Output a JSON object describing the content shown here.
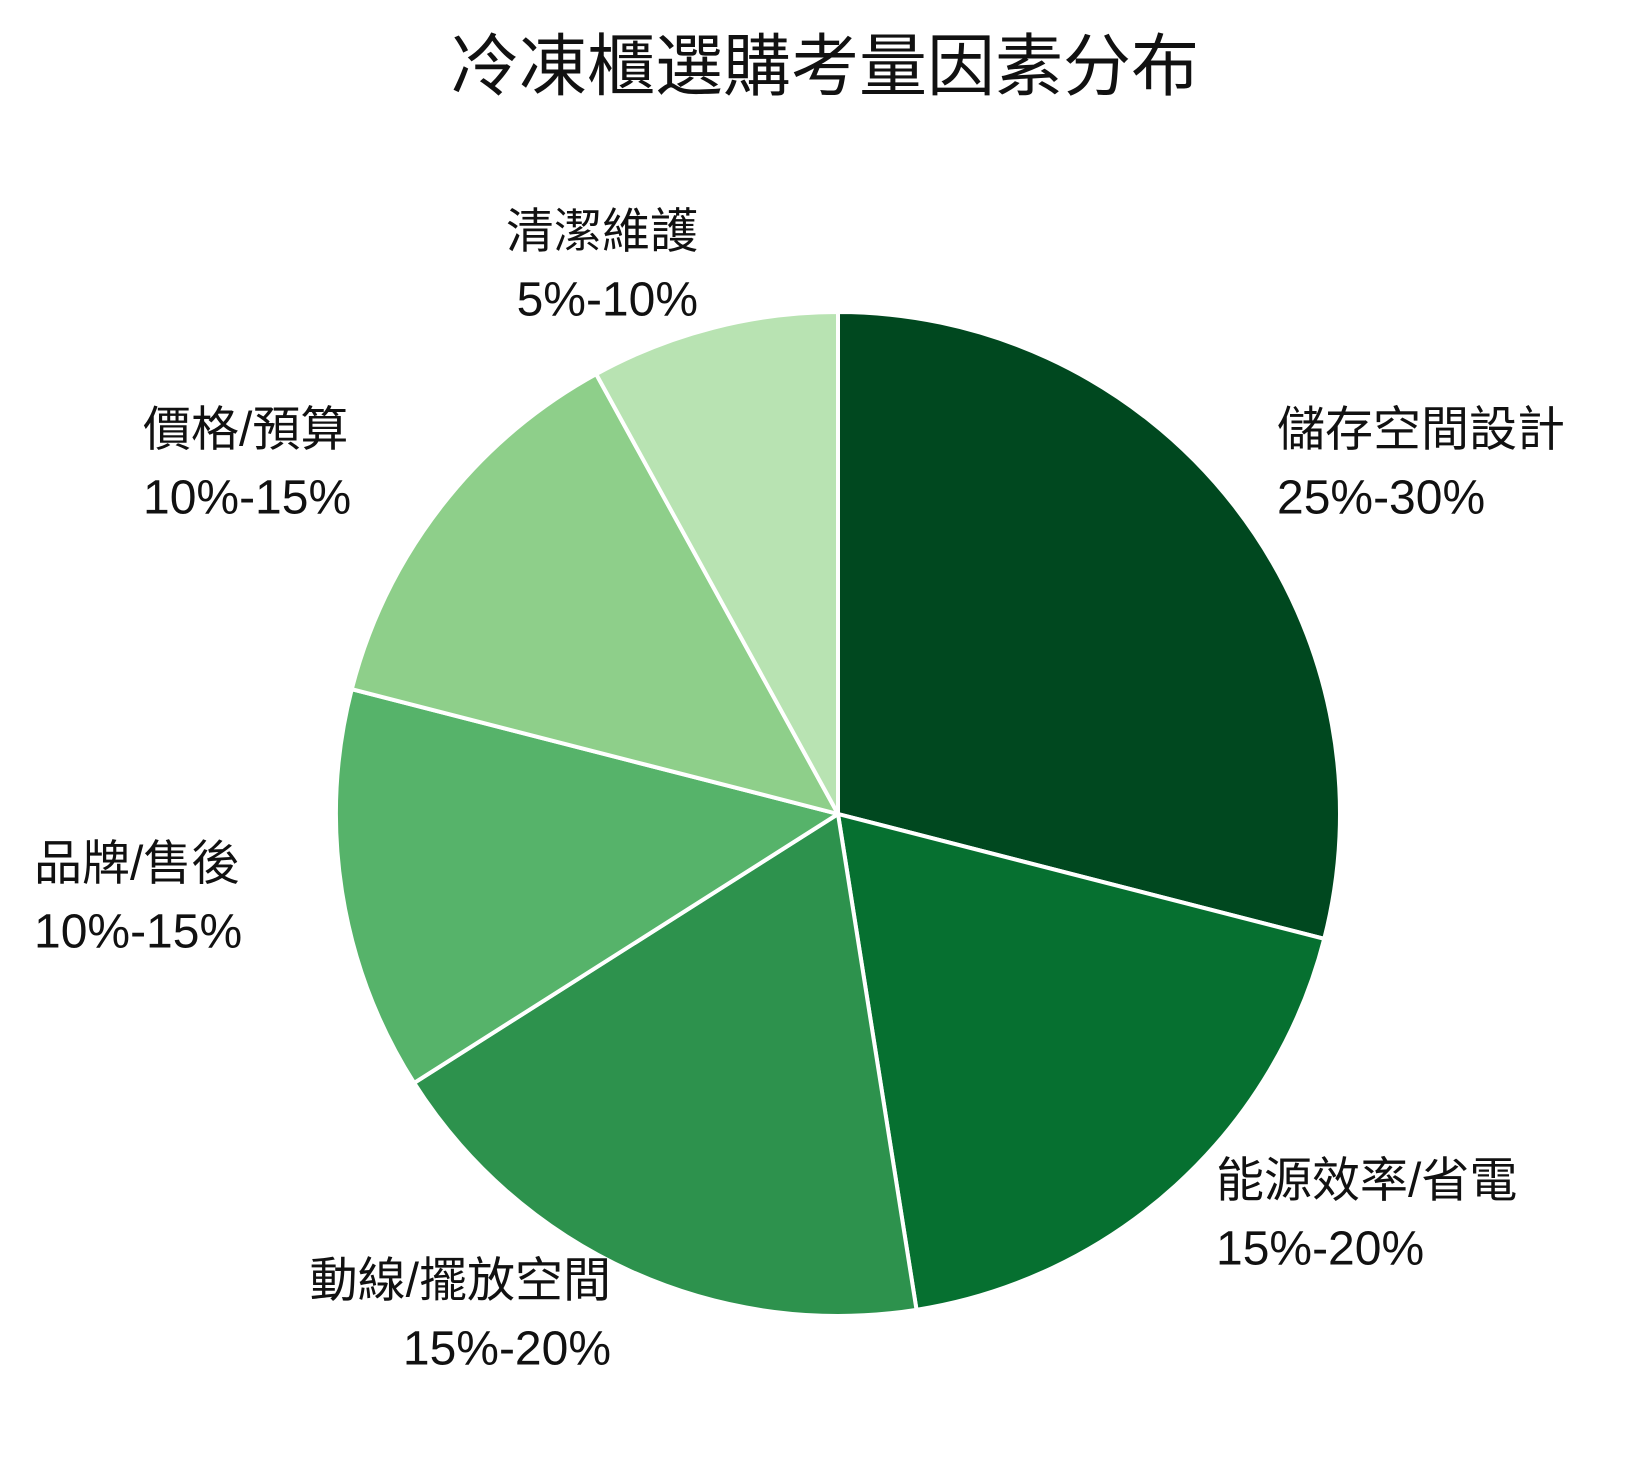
{
  "chart_data": {
    "type": "pie",
    "title": "冷凍櫃選購考量因素分布",
    "categories": [
      "儲存空間設計",
      "能源效率/省電",
      "動線/擺放空間",
      "品牌/售後",
      "價格/預算",
      "清潔維護"
    ],
    "ranges": [
      "25%-30%",
      "15%-20%",
      "15%-20%",
      "10%-15%",
      "10%-15%",
      "5%-10%"
    ],
    "values": [
      29,
      18.5,
      18.5,
      13,
      13,
      8
    ],
    "colors": [
      "#00481f",
      "#067030",
      "#2d924d",
      "#56b36a",
      "#8ecf8a",
      "#b8e3b2"
    ]
  }
}
